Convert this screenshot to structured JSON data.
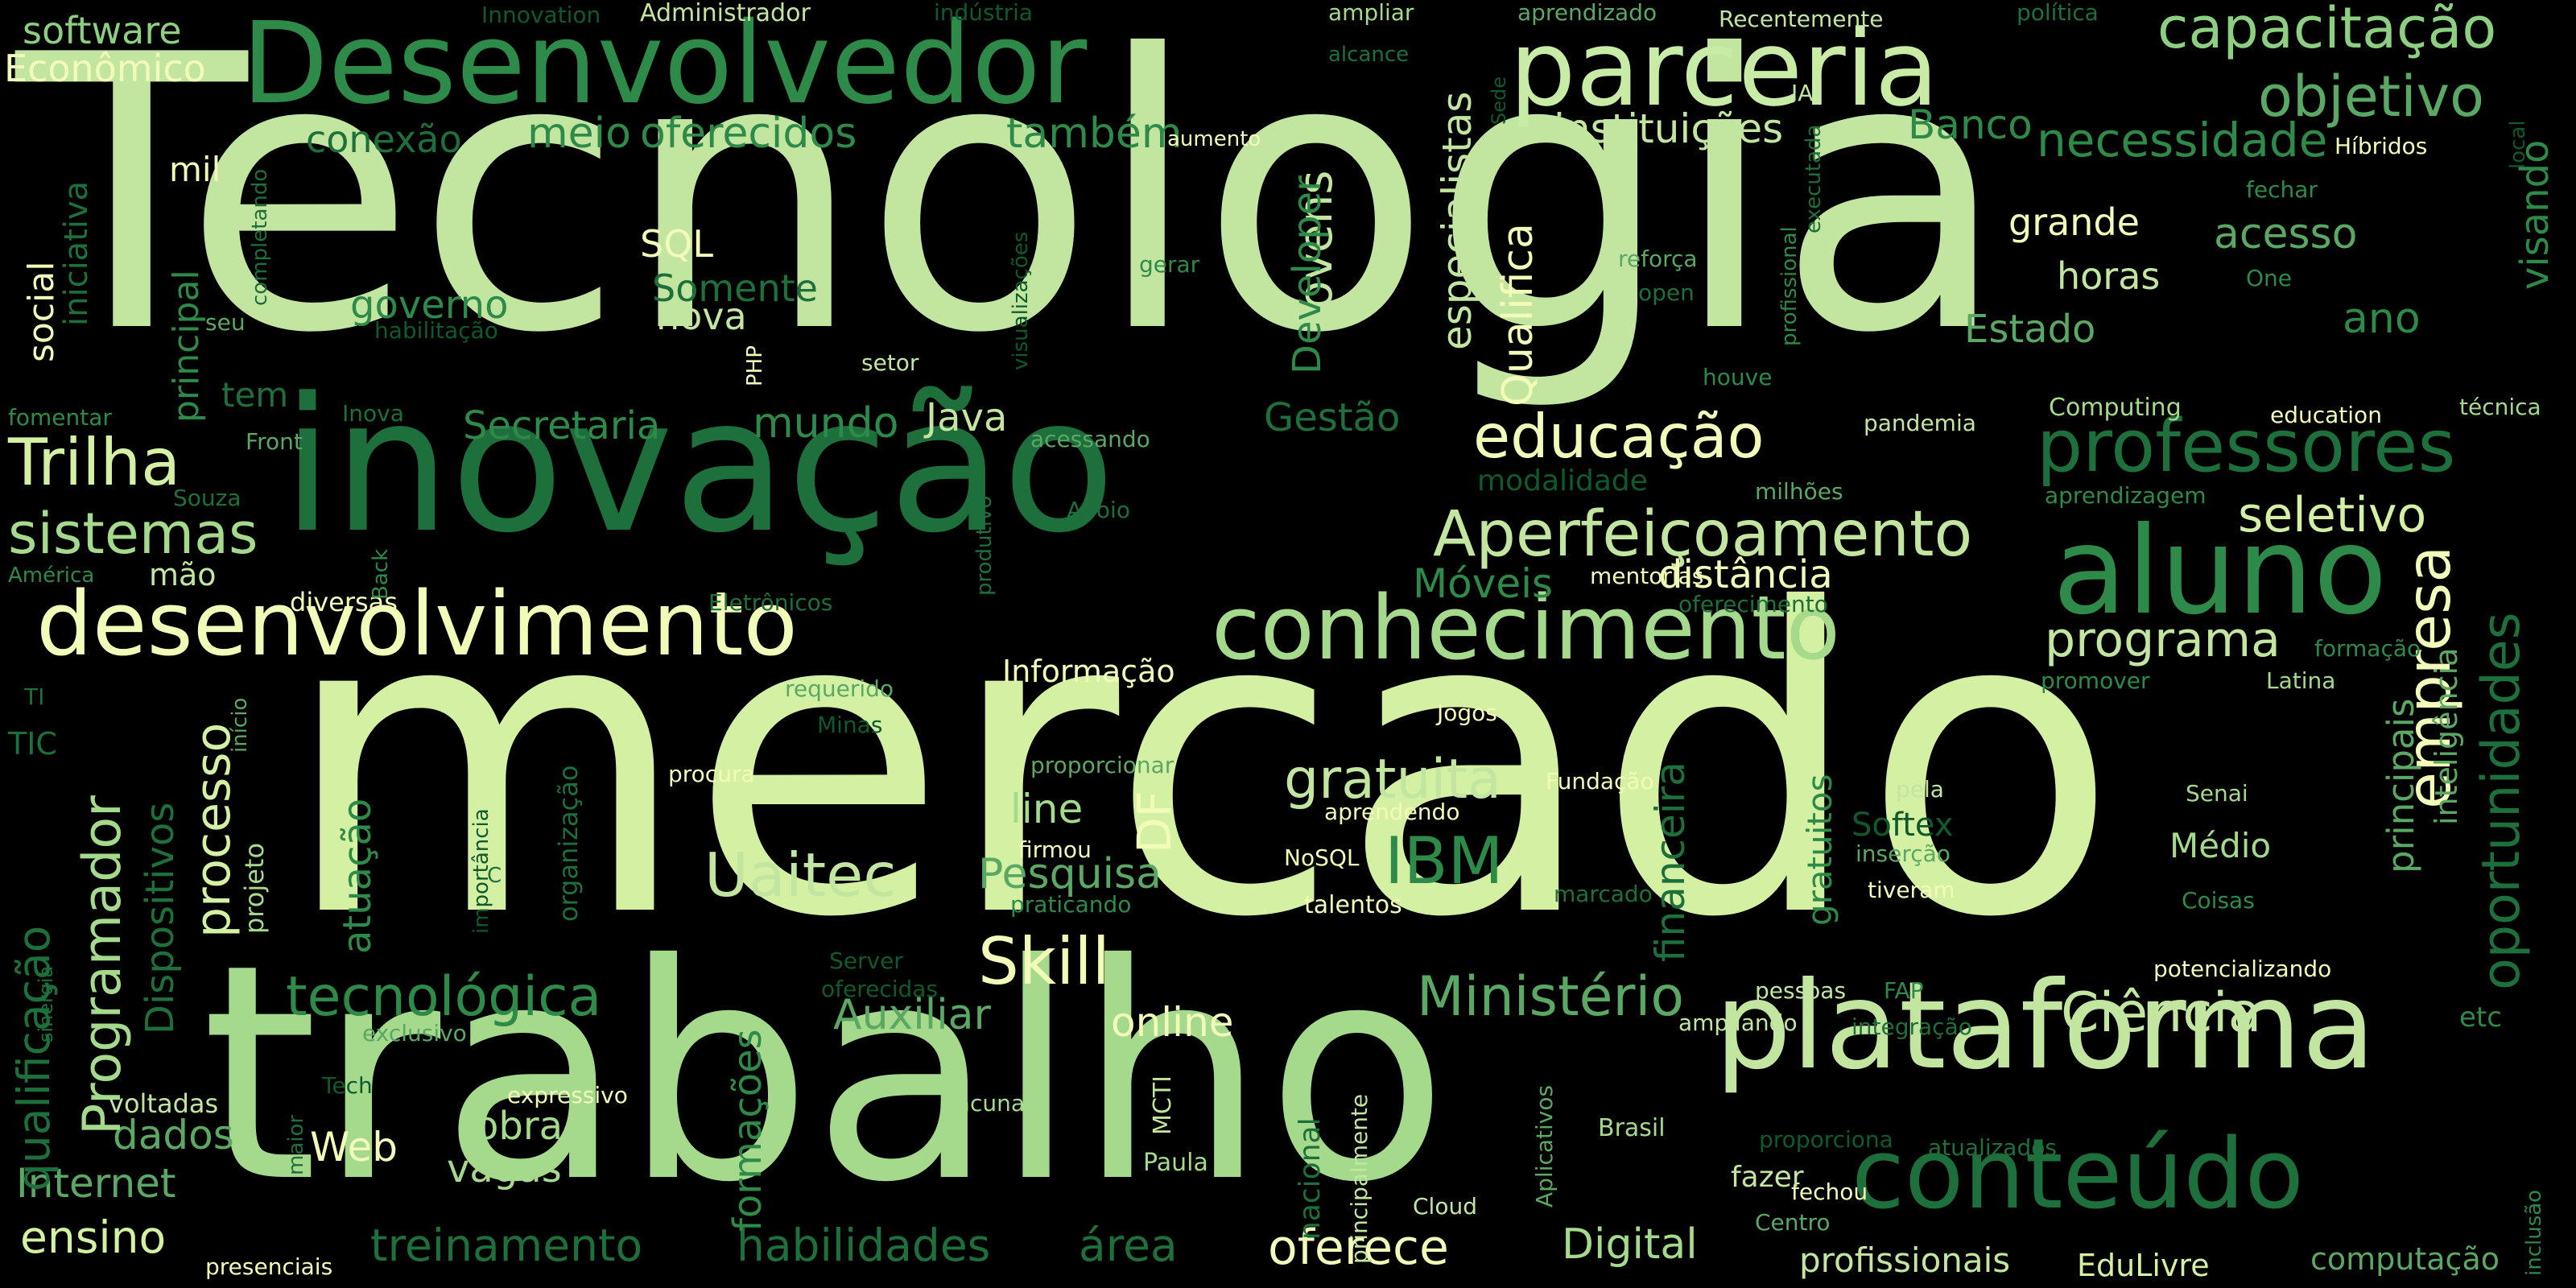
{
  "palette": {
    "background": "#000000",
    "lightest": "#f3fbb8",
    "light": "#d4f0a3",
    "pale_green": "#bfe59a",
    "mid_green": "#8ccf80",
    "green": "#5aa864",
    "dark_green": "#2e8a48",
    "deep_green": "#1d6f3b",
    "darkest_green": "#0f5a2d"
  },
  "words": [
    {
      "text": "Tecnologia",
      "color": "#c2e6a0"
    },
    {
      "text": "mercado",
      "color": "#d4f0a3"
    },
    {
      "text": "trabalho",
      "color": "#a5da8d"
    },
    {
      "text": "inovação",
      "color": "#1d6f3b"
    },
    {
      "text": "Desenvolvedor",
      "color": "#2e8a48"
    },
    {
      "text": "parceria",
      "color": "#c8eba5"
    },
    {
      "text": "plataforma",
      "color": "#c2e6a0"
    },
    {
      "text": "conhecimento",
      "color": "#a5da8d"
    },
    {
      "text": "desenvolvimento",
      "color": "#f3fbb8"
    },
    {
      "text": "aluno",
      "color": "#2e8a48"
    },
    {
      "text": "conteúdo",
      "color": "#1d6f3b"
    },
    {
      "text": "professores",
      "color": "#1d6f3b"
    },
    {
      "text": "capacitação",
      "color": "#8ccf80"
    },
    {
      "text": "objetivo",
      "color": "#5aa864"
    },
    {
      "text": "necessidade",
      "color": "#2e8a48"
    },
    {
      "text": "instituições",
      "color": "#c2e6a0"
    },
    {
      "text": "Banco",
      "color": "#2e8a48"
    },
    {
      "text": "educação",
      "color": "#f3fbb8"
    },
    {
      "text": "Aperfeiçoamento",
      "color": "#c2e6a0"
    },
    {
      "text": "Trilha",
      "color": "#d4f0a3"
    },
    {
      "text": "sistemas",
      "color": "#a5da8d"
    },
    {
      "text": "Uaitec",
      "color": "#c2e6a0"
    },
    {
      "text": "Skill",
      "color": "#f3fbb8"
    },
    {
      "text": "IBM",
      "color": "#2e8a48"
    },
    {
      "text": "gratuita",
      "color": "#c2e6a0"
    },
    {
      "text": "Ministério",
      "color": "#5aa864"
    },
    {
      "text": "tecnológica",
      "color": "#2e8a48"
    },
    {
      "text": "Ciência",
      "color": "#c2e6a0"
    },
    {
      "text": "programa",
      "color": "#c2e6a0"
    },
    {
      "text": "empresa",
      "color": "#f3fbb8"
    },
    {
      "text": "oportunidades",
      "color": "#1d6f3b"
    },
    {
      "text": "seletivo",
      "color": "#d4f0a3"
    },
    {
      "text": "distância",
      "color": "#f3fbb8"
    },
    {
      "text": "Móveis",
      "color": "#2e8a48"
    },
    {
      "text": "treinamento",
      "color": "#1d6f3b"
    },
    {
      "text": "habilidades",
      "color": "#1d6f3b"
    },
    {
      "text": "área",
      "color": "#1d6f3b"
    },
    {
      "text": "oferece",
      "color": "#f3fbb8"
    },
    {
      "text": "Digital",
      "color": "#a5da8d"
    },
    {
      "text": "profissionais",
      "color": "#c2e6a0"
    },
    {
      "text": "EduLivre",
      "color": "#d4f0a3"
    },
    {
      "text": "computação",
      "color": "#5aa864"
    },
    {
      "text": "ensino",
      "color": "#d4f0a3"
    },
    {
      "text": "Internet",
      "color": "#5aa864"
    },
    {
      "text": "dados",
      "color": "#5aa864"
    },
    {
      "text": "Programador",
      "color": "#a5da8d"
    },
    {
      "text": "qualificação",
      "color": "#1d6f3b"
    },
    {
      "text": "processo",
      "color": "#d4f0a3"
    },
    {
      "text": "Dispositivos",
      "color": "#1d6f3b"
    },
    {
      "text": "atuação",
      "color": "#2e8a48"
    },
    {
      "text": "jovens",
      "color": "#c2e6a0"
    },
    {
      "text": "Developer",
      "color": "#2e8a48"
    },
    {
      "text": "especialistas",
      "color": "#c2e6a0"
    },
    {
      "text": "Qualifica",
      "color": "#f3fbb8"
    },
    {
      "text": "financeira",
      "color": "#1d6f3b"
    },
    {
      "text": "principais",
      "color": "#5aa864"
    },
    {
      "text": "inteligência",
      "color": "#5aa864"
    },
    {
      "text": "gratuitos",
      "color": "#2e8a48"
    },
    {
      "text": "formações",
      "color": "#2e8a48"
    },
    {
      "text": "Pesquisa",
      "color": "#5aa864"
    },
    {
      "text": "Auxiliar",
      "color": "#5aa864"
    },
    {
      "text": "online",
      "color": "#f3fbb8"
    },
    {
      "text": "line",
      "color": "#a5da8d"
    },
    {
      "text": "DF",
      "color": "#f3fbb8"
    },
    {
      "text": "obra",
      "color": "#a5da8d"
    },
    {
      "text": "vagas",
      "color": "#a5da8d"
    },
    {
      "text": "Web",
      "color": "#f3fbb8"
    },
    {
      "text": "meio",
      "color": "#2e8a48"
    },
    {
      "text": "oferecidos",
      "color": "#2e8a48"
    },
    {
      "text": "também",
      "color": "#2e8a48"
    },
    {
      "text": "conexão",
      "color": "#1d6f3b"
    },
    {
      "text": "governo",
      "color": "#2e8a48"
    },
    {
      "text": "Somente",
      "color": "#1d6f3b"
    },
    {
      "text": "nova",
      "color": "#c2e6a0"
    },
    {
      "text": "SQL",
      "color": "#f3fbb8"
    },
    {
      "text": "Secretaria",
      "color": "#2e8a48"
    },
    {
      "text": "mundo",
      "color": "#2e8a48"
    },
    {
      "text": "Java",
      "color": "#c2e6a0"
    },
    {
      "text": "Gestão",
      "color": "#1d6f3b"
    },
    {
      "text": "grande",
      "color": "#f3fbb8"
    },
    {
      "text": "acesso",
      "color": "#5aa864"
    },
    {
      "text": "horas",
      "color": "#c2e6a0"
    },
    {
      "text": "ano",
      "color": "#2e8a48"
    },
    {
      "text": "Estado",
      "color": "#5aa864"
    },
    {
      "text": "visando",
      "color": "#2e8a48"
    },
    {
      "text": "software",
      "color": "#8ccf80"
    },
    {
      "text": "Econômico",
      "color": "#f3fbb8"
    },
    {
      "text": "mil",
      "color": "#f3fbb8"
    },
    {
      "text": "social",
      "color": "#f3fbb8"
    },
    {
      "text": "iniciativa",
      "color": "#1d6f3b"
    },
    {
      "text": "principal",
      "color": "#2e8a48"
    },
    {
      "text": "tem",
      "color": "#1d6f3b"
    },
    {
      "text": "mão",
      "color": "#c2e6a0"
    },
    {
      "text": "TIC",
      "color": "#1d6f3b"
    },
    {
      "text": "Médio",
      "color": "#a5da8d"
    },
    {
      "text": "Softex",
      "color": "#0f5a2d"
    },
    {
      "text": "modalidade",
      "color": "#0f5a2d"
    },
    {
      "text": "Informação",
      "color": "#f3fbb8"
    },
    {
      "text": "Innovation",
      "color": "#0f5a2d"
    },
    {
      "text": "Administrador",
      "color": "#c2e6a0"
    },
    {
      "text": "indústria",
      "color": "#0f5a2d"
    },
    {
      "text": "ampliar",
      "color": "#a5da8d"
    },
    {
      "text": "aprendizado",
      "color": "#5aa864"
    },
    {
      "text": "Recentemente",
      "color": "#c2e6a0"
    },
    {
      "text": "política",
      "color": "#1d6f3b"
    },
    {
      "text": "alcance",
      "color": "#1d6f3b"
    },
    {
      "text": "IA",
      "color": "#c2e6a0"
    },
    {
      "text": "local",
      "color": "#0f5a2d"
    },
    {
      "text": "Híbridos",
      "color": "#f3fbb8"
    },
    {
      "text": "aumento",
      "color": "#f3fbb8"
    },
    {
      "text": "fechar",
      "color": "#2e8a48"
    },
    {
      "text": "One",
      "color": "#2e8a48"
    },
    {
      "text": "reforça",
      "color": "#5aa864"
    },
    {
      "text": "open",
      "color": "#1d6f3b"
    },
    {
      "text": "houve",
      "color": "#2e8a48"
    },
    {
      "text": "Computing",
      "color": "#a5da8d"
    },
    {
      "text": "education",
      "color": "#f3fbb8"
    },
    {
      "text": "técnica",
      "color": "#a5da8d"
    },
    {
      "text": "pandemia",
      "color": "#c2e6a0"
    },
    {
      "text": "milhões",
      "color": "#5aa864"
    },
    {
      "text": "aprendizagem",
      "color": "#2e8a48"
    },
    {
      "text": "Jogos",
      "color": "#f3fbb8"
    },
    {
      "text": "Latina",
      "color": "#a5da8d"
    },
    {
      "text": "promover",
      "color": "#2e8a48"
    },
    {
      "text": "formação",
      "color": "#2e8a48"
    },
    {
      "text": "Fundação",
      "color": "#f3fbb8"
    },
    {
      "text": "pela",
      "color": "#c2e6a0"
    },
    {
      "text": "Senai",
      "color": "#a5da8d"
    },
    {
      "text": "inserção",
      "color": "#5aa864"
    },
    {
      "text": "tiveram",
      "color": "#f3fbb8"
    },
    {
      "text": "Coisas",
      "color": "#2e8a48"
    },
    {
      "text": "marcado",
      "color": "#1d6f3b"
    },
    {
      "text": "potencializando",
      "color": "#f3fbb8"
    },
    {
      "text": "pessoas",
      "color": "#c2e6a0"
    },
    {
      "text": "FAP",
      "color": "#2e8a48"
    },
    {
      "text": "ampliando",
      "color": "#c2e6a0"
    },
    {
      "text": "integração",
      "color": "#1d6f3b"
    },
    {
      "text": "etc",
      "color": "#2e8a48"
    },
    {
      "text": "Brasil",
      "color": "#a5da8d"
    },
    {
      "text": "proporciona",
      "color": "#0f5a2d"
    },
    {
      "text": "atualizados",
      "color": "#1d6f3b"
    },
    {
      "text": "fechou",
      "color": "#f3fbb8"
    },
    {
      "text": "fazer",
      "color": "#c2e6a0"
    },
    {
      "text": "Centro",
      "color": "#5aa864"
    },
    {
      "text": "inclusão",
      "color": "#2e8a48"
    },
    {
      "text": "Cloud",
      "color": "#c2e6a0"
    },
    {
      "text": "Aplicativos",
      "color": "#5aa864"
    },
    {
      "text": "principalmente",
      "color": "#c2e6a0"
    },
    {
      "text": "nacional",
      "color": "#1d6f3b"
    },
    {
      "text": "Paula",
      "color": "#a5da8d"
    },
    {
      "text": "MCTI",
      "color": "#c2e6a0"
    },
    {
      "text": "lacunas",
      "color": "#a5da8d"
    },
    {
      "text": "expressivo",
      "color": "#f3fbb8"
    },
    {
      "text": "maior",
      "color": "#1d6f3b"
    },
    {
      "text": "voltadas",
      "color": "#c2e6a0"
    },
    {
      "text": "Tech",
      "color": "#0f5a2d"
    },
    {
      "text": "exclusivo",
      "color": "#5aa864"
    },
    {
      "text": "sinergia",
      "color": "#1d6f3b"
    },
    {
      "text": "presenciais",
      "color": "#f3fbb8"
    },
    {
      "text": "Server",
      "color": "#0f5a2d"
    },
    {
      "text": "oferecidas",
      "color": "#0f5a2d"
    },
    {
      "text": "talentos",
      "color": "#f3fbb8"
    },
    {
      "text": "praticando",
      "color": "#2e8a48"
    },
    {
      "text": "firmou",
      "color": "#f3fbb8"
    },
    {
      "text": "NoSQL",
      "color": "#f3fbb8"
    },
    {
      "text": "aprendendo",
      "color": "#f3fbb8"
    },
    {
      "text": "proporcionar",
      "color": "#5aa864"
    },
    {
      "text": "procura",
      "color": "#f3fbb8"
    },
    {
      "text": "organização",
      "color": "#1d6f3b"
    },
    {
      "text": "importância",
      "color": "#0f5a2d"
    },
    {
      "text": "C",
      "color": "#1d6f3b"
    },
    {
      "text": "projeto",
      "color": "#a5da8d"
    },
    {
      "text": "início",
      "color": "#5aa864"
    },
    {
      "text": "requerido",
      "color": "#5aa864"
    },
    {
      "text": "Minas",
      "color": "#0f5a2d"
    },
    {
      "text": "TI",
      "color": "#1d6f3b"
    },
    {
      "text": "Eletrônicos",
      "color": "#1d6f3b"
    },
    {
      "text": "diversas",
      "color": "#f3fbb8"
    },
    {
      "text": "América",
      "color": "#2e8a48"
    },
    {
      "text": "Back",
      "color": "#2e8a48"
    },
    {
      "text": "Souza",
      "color": "#1d6f3b"
    },
    {
      "text": "Front",
      "color": "#5aa864"
    },
    {
      "text": "fomentar",
      "color": "#2e8a48"
    },
    {
      "text": "Inova",
      "color": "#1d6f3b"
    },
    {
      "text": "Apoio",
      "color": "#1d6f3b"
    },
    {
      "text": "produtivo",
      "color": "#1d6f3b"
    },
    {
      "text": "acessando",
      "color": "#5aa864"
    },
    {
      "text": "PHP",
      "color": "#f3fbb8"
    },
    {
      "text": "setor",
      "color": "#c2e6a0"
    },
    {
      "text": "visualizações",
      "color": "#0f5a2d"
    },
    {
      "text": "gerar",
      "color": "#2e8a48"
    },
    {
      "text": "completando",
      "color": "#1d6f3b"
    },
    {
      "text": "seu",
      "color": "#5aa864"
    },
    {
      "text": "habilitação",
      "color": "#0f5a2d"
    },
    {
      "text": "Sede",
      "color": "#0f5a2d"
    },
    {
      "text": "profissional",
      "color": "#2e8a48"
    },
    {
      "text": "executada",
      "color": "#1d6f3b"
    },
    {
      "text": "mentorias",
      "color": "#f3fbb8"
    },
    {
      "text": "oferecimento",
      "color": "#1d6f3b"
    }
  ]
}
